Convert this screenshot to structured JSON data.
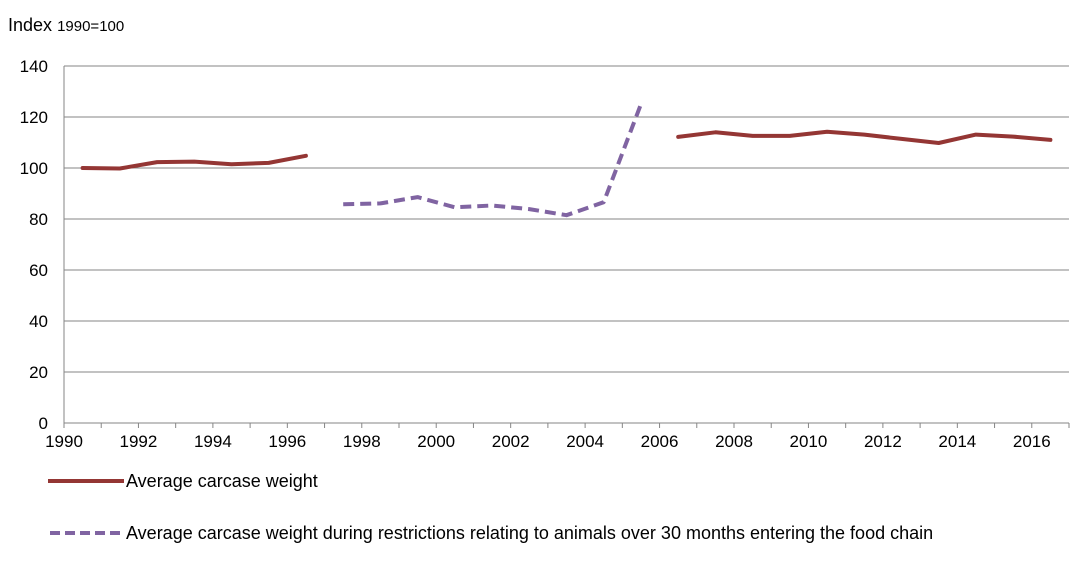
{
  "chart_data": {
    "type": "line",
    "ylabel": "Index",
    "ylabel_unit": "1990=100",
    "ylim": [
      0,
      140
    ],
    "yticks": [
      0,
      20,
      40,
      60,
      80,
      100,
      120,
      140
    ],
    "x": [
      1990,
      1991,
      1992,
      1993,
      1994,
      1995,
      1996,
      1997,
      1998,
      1999,
      2000,
      2001,
      2002,
      2003,
      2004,
      2005,
      2006,
      2007,
      2008,
      2009,
      2010,
      2011,
      2012,
      2013,
      2014,
      2015,
      2016
    ],
    "xtick_labels": [
      "1990",
      "1992",
      "1994",
      "1996",
      "1998",
      "2000",
      "2002",
      "2004",
      "2006",
      "2008",
      "2010",
      "2012",
      "2014",
      "2016"
    ],
    "grid": "horizontal",
    "legend_position": "bottom",
    "series": [
      {
        "name": "Average carcase weight",
        "color": "#943634",
        "dash": "solid",
        "values": [
          100,
          99.8,
          102.3,
          102.5,
          101.5,
          102,
          104.8,
          null,
          null,
          null,
          null,
          null,
          null,
          null,
          null,
          null,
          112.2,
          114,
          112.6,
          112.6,
          114.2,
          113.1,
          111.4,
          109.8,
          113.1,
          112.3,
          111
        ]
      },
      {
        "name": "Average carcase weight during restrictions relating to animals over 30 months entering the food chain",
        "color": "#8064a2",
        "dash": "dashed",
        "values": [
          null,
          null,
          null,
          null,
          null,
          null,
          null,
          85.8,
          86.1,
          88.6,
          84.6,
          85.3,
          83.9,
          81.5,
          86.6,
          125,
          null,
          null,
          null,
          null,
          null,
          null,
          null,
          null,
          null,
          null,
          null
        ]
      }
    ]
  }
}
